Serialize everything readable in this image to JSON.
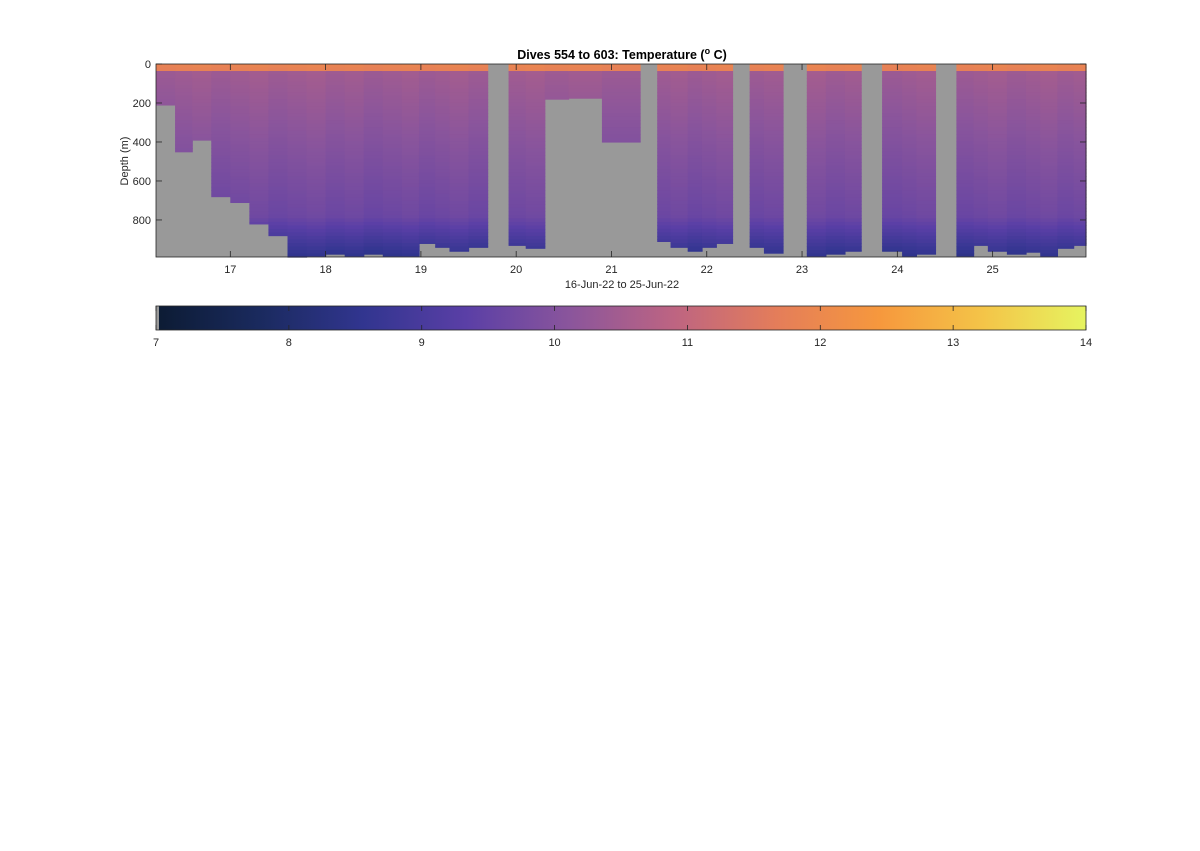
{
  "chart_data": {
    "type": "heatmap",
    "title": {
      "main": "Dives 554 to 603: Temperature (",
      "superscript": "o",
      "unit": " C)"
    },
    "xlabel": "16-Jun-22 to 25-Jun-22",
    "ylabel": "Depth (m)",
    "x_tick_values": [
      17,
      18,
      19,
      20,
      21,
      22,
      23,
      24,
      25
    ],
    "x_tick_labels": [
      "17",
      "18",
      "19",
      "20",
      "21",
      "22",
      "23",
      "24",
      "25"
    ],
    "xlim": [
      16.22,
      25.98
    ],
    "y_tick_values": [
      0,
      200,
      400,
      600,
      800
    ],
    "y_tick_labels": [
      "0",
      "200",
      "400",
      "600",
      "800"
    ],
    "ylim": [
      0,
      990
    ],
    "y_reversed": true,
    "no_data_color": "#999999",
    "colorbar": {
      "range": [
        7,
        14
      ],
      "tick_values": [
        7,
        8,
        9,
        10,
        11,
        12,
        13,
        14
      ],
      "tick_labels": [
        "7",
        "8",
        "9",
        "10",
        "11",
        "12",
        "13",
        "14"
      ],
      "colormap": [
        "#0c1b33",
        "#1a2a5e",
        "#31358f",
        "#5a3fa6",
        "#8a559c",
        "#bd6482",
        "#e47d5a",
        "#f6983d",
        "#f4c448",
        "#e6f460"
      ],
      "position": "below"
    },
    "surface_temperature_C": 11.9,
    "profiles": [
      {
        "start": 16.22,
        "end": 16.42,
        "max_depth": 210
      },
      {
        "start": 16.42,
        "end": 16.6,
        "max_depth": 450
      },
      {
        "start": 16.6,
        "end": 16.8,
        "max_depth": 390
      },
      {
        "start": 16.8,
        "end": 17.0,
        "max_depth": 680
      },
      {
        "start": 17.0,
        "end": 17.2,
        "max_depth": 710
      },
      {
        "start": 17.2,
        "end": 17.4,
        "max_depth": 820
      },
      {
        "start": 17.4,
        "end": 17.6,
        "max_depth": 880
      },
      {
        "start": 17.6,
        "end": 17.8,
        "max_depth": 990
      },
      {
        "start": 17.8,
        "end": 18.0,
        "max_depth": 985
      },
      {
        "start": 18.0,
        "end": 18.2,
        "max_depth": 975
      },
      {
        "start": 18.2,
        "end": 18.4,
        "max_depth": 985
      },
      {
        "start": 18.4,
        "end": 18.6,
        "max_depth": 975
      },
      {
        "start": 18.6,
        "end": 18.8,
        "max_depth": 985
      },
      {
        "start": 18.8,
        "end": 18.98,
        "max_depth": 985
      },
      {
        "start": 18.98,
        "end": 19.15,
        "max_depth": 920
      },
      {
        "start": 19.15,
        "end": 19.3,
        "max_depth": 940
      },
      {
        "start": 19.3,
        "end": 19.5,
        "max_depth": 960
      },
      {
        "start": 19.5,
        "end": 19.7,
        "max_depth": 940
      },
      {
        "start": 19.92,
        "end": 20.1,
        "max_depth": 930
      },
      {
        "start": 20.1,
        "end": 20.3,
        "max_depth": 945
      },
      {
        "start": 20.3,
        "end": 20.55,
        "max_depth": 180
      },
      {
        "start": 20.55,
        "end": 20.9,
        "max_depth": 175
      },
      {
        "start": 20.9,
        "end": 21.3,
        "max_depth": 400
      },
      {
        "start": 21.48,
        "end": 21.62,
        "max_depth": 910
      },
      {
        "start": 21.62,
        "end": 21.8,
        "max_depth": 940
      },
      {
        "start": 21.8,
        "end": 21.95,
        "max_depth": 960
      },
      {
        "start": 21.95,
        "end": 22.1,
        "max_depth": 940
      },
      {
        "start": 22.1,
        "end": 22.27,
        "max_depth": 920
      },
      {
        "start": 22.45,
        "end": 22.6,
        "max_depth": 940
      },
      {
        "start": 22.6,
        "end": 22.8,
        "max_depth": 970
      },
      {
        "start": 23.05,
        "end": 23.25,
        "max_depth": 985
      },
      {
        "start": 23.25,
        "end": 23.45,
        "max_depth": 975
      },
      {
        "start": 23.45,
        "end": 23.62,
        "max_depth": 960
      },
      {
        "start": 23.84,
        "end": 24.05,
        "max_depth": 960
      },
      {
        "start": 24.05,
        "end": 24.2,
        "max_depth": 985
      },
      {
        "start": 24.2,
        "end": 24.4,
        "max_depth": 975
      },
      {
        "start": 24.62,
        "end": 24.8,
        "max_depth": 985
      },
      {
        "start": 24.8,
        "end": 24.95,
        "max_depth": 930
      },
      {
        "start": 24.95,
        "end": 25.15,
        "max_depth": 960
      },
      {
        "start": 25.15,
        "end": 25.35,
        "max_depth": 975
      },
      {
        "start": 25.35,
        "end": 25.5,
        "max_depth": 965
      },
      {
        "start": 25.5,
        "end": 25.68,
        "max_depth": 985
      },
      {
        "start": 25.68,
        "end": 25.85,
        "max_depth": 945
      },
      {
        "start": 25.85,
        "end": 25.98,
        "max_depth": 930
      }
    ]
  }
}
